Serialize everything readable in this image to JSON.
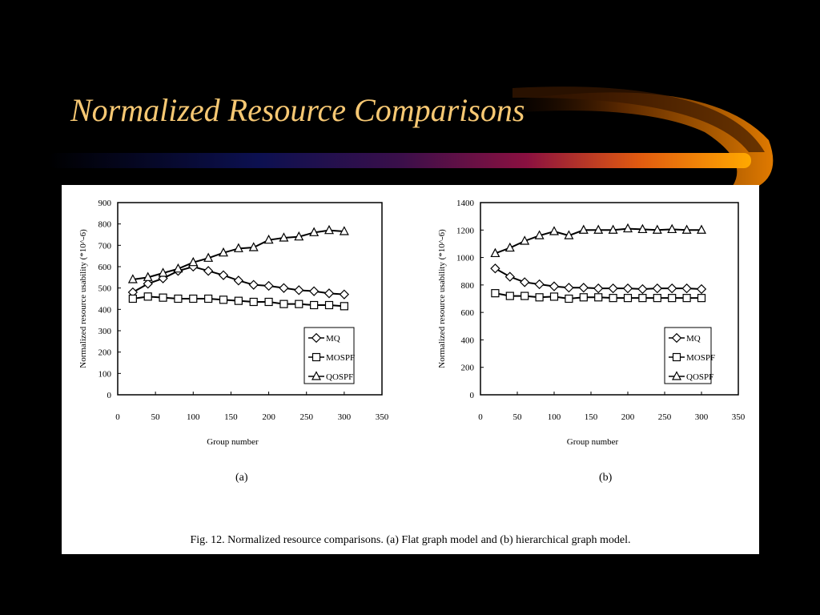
{
  "slide": {
    "title": "Normalized Resource Comparisons",
    "colors": {
      "background": "#000000",
      "title": "#f7c873",
      "swoosh": "#ff9900",
      "panel": "#ffffff"
    }
  },
  "figure": {
    "caption": "Fig. 12.    Normalized resource comparisons. (a) Flat graph model and (b) hierarchical graph model.",
    "panel_labels": [
      "(a)",
      "(b)"
    ]
  },
  "chart_data": [
    {
      "type": "line",
      "panel": "(a)",
      "xlabel": "Group number",
      "ylabel": "Normalized resource usability (*10^-6)",
      "xlim": [
        0,
        350
      ],
      "ylim": [
        0,
        900
      ],
      "xticks": [
        0,
        50,
        100,
        150,
        200,
        250,
        300,
        350
      ],
      "yticks": [
        0,
        100,
        200,
        300,
        400,
        500,
        600,
        700,
        800,
        900
      ],
      "grid": false,
      "legend": "bottom-right",
      "x": [
        20,
        40,
        60,
        80,
        100,
        120,
        140,
        160,
        180,
        200,
        220,
        240,
        260,
        280,
        300
      ],
      "series": [
        {
          "name": "MQ",
          "marker": "diamond",
          "values": [
            480,
            520,
            545,
            580,
            600,
            580,
            560,
            535,
            515,
            510,
            500,
            490,
            485,
            475,
            470
          ]
        },
        {
          "name": "MOSPF",
          "marker": "square",
          "values": [
            450,
            460,
            455,
            450,
            450,
            450,
            445,
            440,
            435,
            435,
            425,
            425,
            420,
            420,
            415
          ]
        },
        {
          "name": "QOSPF",
          "marker": "triangle",
          "values": [
            540,
            550,
            570,
            590,
            620,
            640,
            665,
            685,
            690,
            725,
            735,
            740,
            760,
            770,
            765
          ]
        }
      ]
    },
    {
      "type": "line",
      "panel": "(b)",
      "xlabel": "Group number",
      "ylabel": "Normalized resource usability (*10^-6)",
      "xlim": [
        0,
        350
      ],
      "ylim": [
        0,
        1400
      ],
      "xticks": [
        0,
        50,
        100,
        150,
        200,
        250,
        300,
        350
      ],
      "yticks": [
        0,
        200,
        400,
        600,
        800,
        1000,
        1200,
        1400
      ],
      "grid": false,
      "legend": "bottom-right",
      "x": [
        20,
        40,
        60,
        80,
        100,
        120,
        140,
        160,
        180,
        200,
        220,
        240,
        260,
        280,
        300
      ],
      "series": [
        {
          "name": "MQ",
          "marker": "diamond",
          "values": [
            920,
            860,
            820,
            805,
            790,
            780,
            780,
            775,
            775,
            775,
            770,
            775,
            775,
            775,
            770
          ]
        },
        {
          "name": "MOSPF",
          "marker": "square",
          "values": [
            740,
            720,
            720,
            710,
            715,
            700,
            710,
            710,
            705,
            705,
            705,
            705,
            705,
            705,
            705
          ]
        },
        {
          "name": "QOSPF",
          "marker": "triangle",
          "values": [
            1030,
            1070,
            1120,
            1160,
            1190,
            1160,
            1200,
            1200,
            1200,
            1210,
            1205,
            1200,
            1205,
            1200,
            1200
          ]
        }
      ]
    }
  ]
}
